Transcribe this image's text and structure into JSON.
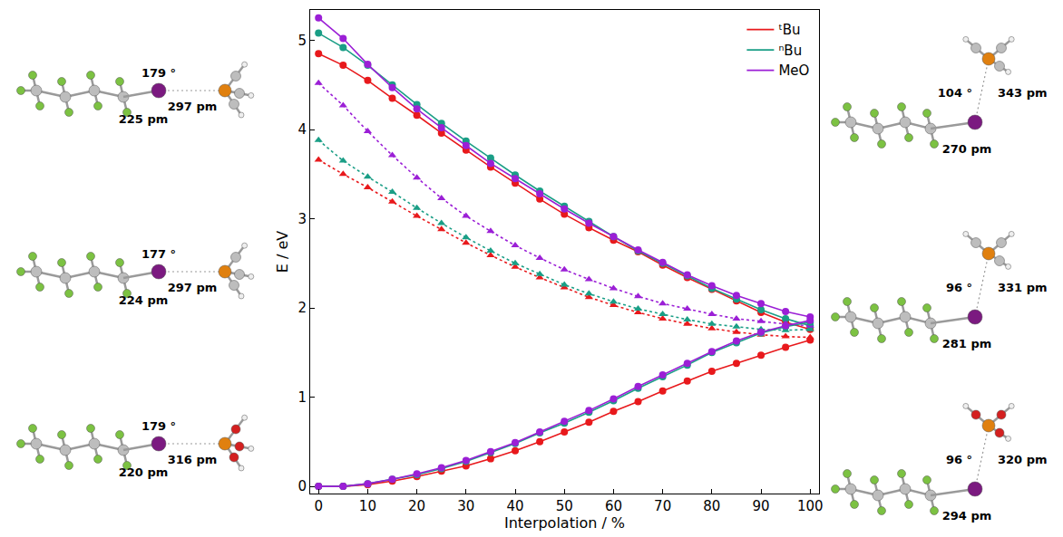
{
  "chart_data": {
    "type": "line",
    "x_label": "Interpolation / %",
    "y_label": "E / eV",
    "x": [
      0,
      5,
      10,
      15,
      20,
      25,
      30,
      35,
      40,
      45,
      50,
      55,
      60,
      65,
      70,
      75,
      80,
      85,
      90,
      95,
      100
    ],
    "xlim": [
      -1.7,
      101.8
    ],
    "xticks": [
      0,
      10,
      20,
      30,
      40,
      50,
      60,
      70,
      80,
      90,
      100
    ],
    "ylim": [
      -0.08,
      5.34
    ],
    "yticks": [
      0,
      1,
      2,
      3,
      4,
      5
    ],
    "grid": false,
    "legend": "top right",
    "series": [
      {
        "name": "ᵗBu",
        "color": "#e8191c",
        "line_style": "solid",
        "marker": "circle",
        "values": [
          4.85,
          4.72,
          4.55,
          4.35,
          4.16,
          3.96,
          3.77,
          3.58,
          3.4,
          3.22,
          3.05,
          2.9,
          2.76,
          2.63,
          2.48,
          2.34,
          2.21,
          2.08,
          1.95,
          1.84,
          1.76
        ]
      },
      {
        "name": "ⁿBu",
        "color": "#1a9e86",
        "line_style": "solid",
        "marker": "circle",
        "values": [
          5.08,
          4.92,
          4.72,
          4.5,
          4.28,
          4.07,
          3.87,
          3.68,
          3.49,
          3.31,
          3.14,
          2.97,
          2.8,
          2.64,
          2.5,
          2.36,
          2.22,
          2.1,
          1.98,
          1.88,
          1.8
        ]
      },
      {
        "name": "MeO",
        "color": "#9b1fd6",
        "line_style": "solid",
        "marker": "circle",
        "values": [
          5.25,
          5.02,
          4.73,
          4.47,
          4.23,
          4.02,
          3.82,
          3.62,
          3.45,
          3.28,
          3.11,
          2.95,
          2.8,
          2.65,
          2.51,
          2.37,
          2.25,
          2.14,
          2.05,
          1.96,
          1.9
        ]
      },
      {
        "name": "ᵗBu",
        "color": "#e8191c",
        "line_style": "dot",
        "marker": "triangle-up",
        "values": [
          3.66,
          3.5,
          3.35,
          3.19,
          3.03,
          2.88,
          2.73,
          2.59,
          2.46,
          2.34,
          2.23,
          2.12,
          2.03,
          1.95,
          1.88,
          1.82,
          1.77,
          1.73,
          1.7,
          1.68,
          1.67
        ]
      },
      {
        "name": "ⁿBu",
        "color": "#1a9e86",
        "line_style": "dot",
        "marker": "triangle-up",
        "values": [
          3.88,
          3.65,
          3.47,
          3.3,
          3.12,
          2.95,
          2.79,
          2.64,
          2.5,
          2.38,
          2.26,
          2.16,
          2.07,
          1.99,
          1.93,
          1.87,
          1.82,
          1.79,
          1.76,
          1.75,
          1.76
        ]
      },
      {
        "name": "MeO",
        "color": "#9b1fd6",
        "line_style": "dot",
        "marker": "triangle-up",
        "values": [
          4.52,
          4.27,
          3.98,
          3.71,
          3.46,
          3.23,
          3.03,
          2.86,
          2.7,
          2.56,
          2.43,
          2.32,
          2.22,
          2.13,
          2.05,
          1.99,
          1.93,
          1.88,
          1.85,
          1.82,
          1.8
        ]
      },
      {
        "name": "ᵗBu",
        "color": "#e8191c",
        "line_style": "solid",
        "marker": "circle",
        "values": [
          0.0,
          0.0,
          0.02,
          0.06,
          0.11,
          0.17,
          0.23,
          0.31,
          0.4,
          0.5,
          0.61,
          0.72,
          0.84,
          0.95,
          1.07,
          1.18,
          1.29,
          1.38,
          1.47,
          1.56,
          1.64
        ]
      },
      {
        "name": "ⁿBu",
        "color": "#1a9e86",
        "line_style": "solid",
        "marker": "circle",
        "values": [
          0.0,
          0.0,
          0.03,
          0.08,
          0.13,
          0.2,
          0.28,
          0.38,
          0.48,
          0.6,
          0.71,
          0.83,
          0.96,
          1.1,
          1.23,
          1.36,
          1.5,
          1.61,
          1.72,
          1.79,
          1.84
        ]
      },
      {
        "name": "MeO",
        "color": "#9b1fd6",
        "line_style": "solid",
        "marker": "circle",
        "values": [
          0.0,
          0.0,
          0.03,
          0.08,
          0.14,
          0.21,
          0.29,
          0.39,
          0.49,
          0.61,
          0.73,
          0.85,
          0.98,
          1.12,
          1.25,
          1.38,
          1.51,
          1.63,
          1.73,
          1.8,
          1.86
        ]
      }
    ],
    "structures": {
      "left": [
        {
          "angle": "179 °",
          "bond_CI": "225 pm",
          "bond_IP": "297 pm"
        },
        {
          "angle": "177 °",
          "bond_CI": "224 pm",
          "bond_IP": "297 pm"
        },
        {
          "angle": "179 °",
          "bond_CI": "220 pm",
          "bond_IP": "316 pm"
        }
      ],
      "right": [
        {
          "angle": "104 °",
          "bond_CI": "270 pm",
          "bond_IP": "343 pm"
        },
        {
          "angle": "96 °",
          "bond_CI": "281 pm",
          "bond_IP": "331 pm"
        },
        {
          "angle": "96 °",
          "bond_CI": "294 pm",
          "bond_IP": "320 pm"
        }
      ]
    }
  }
}
